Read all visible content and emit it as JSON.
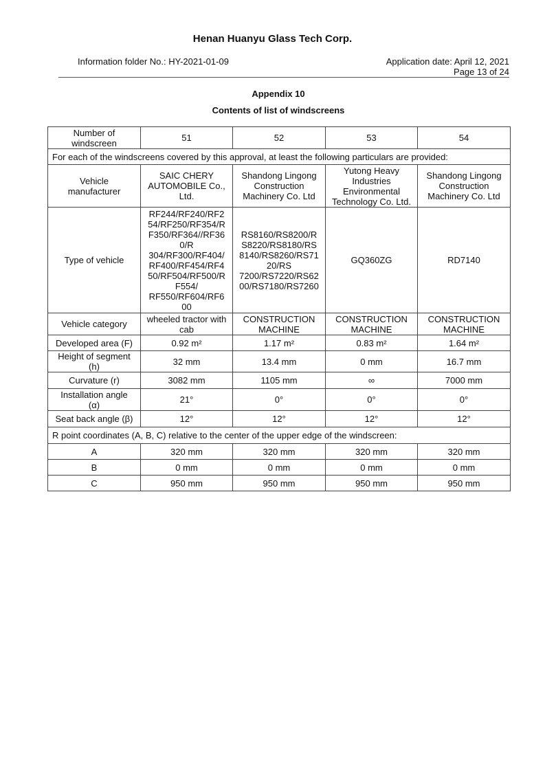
{
  "header": {
    "company": "Henan Huanyu Glass Tech Corp.",
    "folder": "Information folder No.: HY-2021-01-09",
    "application_date": "Application date: April 12, 2021",
    "page": "Page 13 of 24"
  },
  "title": {
    "appendix": "Appendix 10",
    "subtitle": "Contents of list of windscreens"
  },
  "table": {
    "number_label": "Number of\nwindscreen",
    "numbers": [
      "51",
      "52",
      "53",
      "54"
    ],
    "intro": "For each of the windscreens covered by this approval, at least the following particulars are provided:",
    "rows": [
      {
        "label": "Vehicle\nmanufacturer",
        "values": [
          "SAIC CHERY\nAUTOMOBILE Co.,\nLtd.",
          "Shandong Lingong\nConstruction\nMachinery Co. Ltd",
          "Yutong Heavy\nIndustries\nEnvironmental\nTechnology Co. Ltd.",
          "Shandong Lingong\nConstruction\nMachinery Co. Ltd"
        ]
      },
      {
        "label": "Type of vehicle",
        "values": [
          "RF244/RF240/RF2\n54/RF250/RF354/R\nF350/RF364//RF36\n0/R\n304/RF300/RF404/\nRF400/RF454/RF4\n50/RF504/RF500/R\nF554/\nRF550/RF604/RF6\n00",
          "RS8160/RS8200/R\nS8220/RS8180/RS\n8140/RS8260/RS71\n20/RS\n7200/RS7220/RS62\n00/RS7180/RS7260",
          "GQ360ZG",
          "RD7140"
        ]
      },
      {
        "label": "Vehicle category",
        "values": [
          "wheeled tractor with\ncab",
          "CONSTRUCTION\nMACHINE",
          "CONSTRUCTION\nMACHINE",
          "CONSTRUCTION\nMACHINE"
        ]
      },
      {
        "label": "Developed area (F)",
        "values": [
          "0.92 m²",
          "1.17 m²",
          "0.83 m²",
          "1.64 m²"
        ]
      },
      {
        "label": "Height of segment\n(h)",
        "values": [
          "32 mm",
          "13.4 mm",
          "0 mm",
          "16.7 mm"
        ]
      },
      {
        "label": "Curvature (r)",
        "values": [
          "3082 mm",
          "1105 mm",
          "∞",
          "7000 mm"
        ]
      },
      {
        "label": "Installation angle\n(α)",
        "values": [
          "21°",
          "0°",
          "0°",
          "0°"
        ]
      },
      {
        "label": "Seat back angle (β)",
        "values": [
          "12°",
          "12°",
          "12°",
          "12°"
        ]
      }
    ],
    "r_point_intro": "R point coordinates (A, B, C) relative to the center of the upper edge of the windscreen:",
    "r_rows": [
      {
        "label": "A",
        "values": [
          "320 mm",
          "320 mm",
          "320 mm",
          "320 mm"
        ]
      },
      {
        "label": "B",
        "values": [
          "0 mm",
          "0 mm",
          "0 mm",
          "0 mm"
        ]
      },
      {
        "label": "C",
        "values": [
          "950 mm",
          "950 mm",
          "950 mm",
          "950 mm"
        ]
      }
    ]
  }
}
